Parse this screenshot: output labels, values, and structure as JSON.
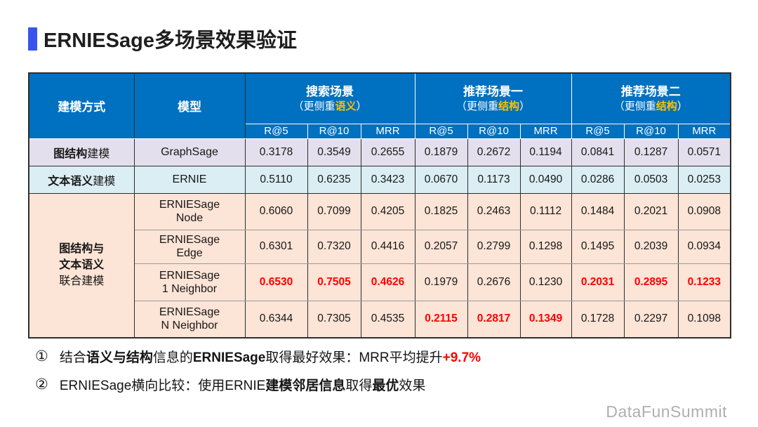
{
  "title": "ERNIESage多场景效果验证",
  "colors": {
    "accent-bar": "#3A53EC",
    "header-bg": "#0070C0",
    "header-text": "#FFFFFF",
    "highlight-yellow": "#FFC000",
    "highlight-red": "#FF0000",
    "row-graph-bg": "#E4DFEC",
    "row-text-bg": "#DAEEF3",
    "row-joint-bg": "#FCE4D6",
    "border-dark": "#2E2E2E",
    "border-light": "#9A9A9A",
    "footer-text": "#AFAFAF",
    "title-text": "#1E1E1E"
  },
  "table": {
    "headers": {
      "method": "建模方式",
      "model": "模型"
    },
    "scenarios": [
      {
        "name": "搜索场景",
        "subtitle": [
          {
            "t": "（更侧重"
          },
          {
            "t": "语义",
            "c": "b yellow"
          },
          {
            "t": "）"
          }
        ],
        "metrics": [
          "R@5",
          "R@10",
          "MRR"
        ]
      },
      {
        "name": "推荐场景一",
        "subtitle": [
          {
            "t": "（更侧重"
          },
          {
            "t": "结构",
            "c": "b yellow"
          },
          {
            "t": "）"
          }
        ],
        "metrics": [
          "R@5",
          "R@10",
          "MRR"
        ]
      },
      {
        "name": "推荐场景二",
        "subtitle": [
          {
            "t": "（更侧重"
          },
          {
            "t": "结构",
            "c": "b yellow"
          },
          {
            "t": "）"
          }
        ],
        "metrics": [
          "R@5",
          "R@10",
          "MRR"
        ]
      }
    ],
    "rows": [
      {
        "method": [
          {
            "t": "图结构",
            "c": "b"
          },
          {
            "t": "建模"
          }
        ],
        "model_lines": [
          "GraphSage"
        ],
        "values": [
          "0.3178",
          "0.3549",
          "0.2655",
          "0.1879",
          "0.2672",
          "0.1194",
          "0.0841",
          "0.1287",
          "0.0571"
        ],
        "red_value_indices": []
      },
      {
        "method": [
          {
            "t": "文本语义",
            "c": "b"
          },
          {
            "t": "建模"
          }
        ],
        "model_lines": [
          "ERNIE"
        ],
        "values": [
          "0.5110",
          "0.6235",
          "0.3423",
          "0.0670",
          "0.1173",
          "0.0490",
          "0.0286",
          "0.0503",
          "0.0253"
        ],
        "red_value_indices": []
      },
      {
        "group_lines": [
          {
            "t": "图结构与",
            "c": "b"
          },
          {
            "t": "文本语义",
            "c": "b"
          },
          {
            "t": "联合建模"
          }
        ],
        "model_lines": [
          "ERNIESage",
          "Node"
        ],
        "values": [
          "0.6060",
          "0.7099",
          "0.4205",
          "0.1825",
          "0.2463",
          "0.1112",
          "0.1484",
          "0.2021",
          "0.0908"
        ],
        "red_value_indices": []
      },
      {
        "model_lines": [
          "ERNIESage",
          "Edge"
        ],
        "values": [
          "0.6301",
          "0.7320",
          "0.4416",
          "0.2057",
          "0.2799",
          "0.1298",
          "0.1495",
          "0.2039",
          "0.0934"
        ],
        "red_value_indices": []
      },
      {
        "model_lines": [
          "ERNIESage",
          "1 Neighbor"
        ],
        "values": [
          "0.6530",
          "0.7505",
          "0.4626",
          "0.1979",
          "0.2676",
          "0.1230",
          "0.2031",
          "0.2895",
          "0.1233"
        ],
        "red_value_indices": [
          0,
          1,
          2,
          6,
          7,
          8
        ]
      },
      {
        "model_lines": [
          "ERNIESage",
          "N Neighbor"
        ],
        "values": [
          "0.6344",
          "0.7305",
          "0.4535",
          "0.2115",
          "0.2817",
          "0.1349",
          "0.1728",
          "0.2297",
          "0.1098"
        ],
        "red_value_indices": [
          3,
          4,
          5
        ]
      }
    ]
  },
  "notes": [
    {
      "num": "①",
      "segments": [
        {
          "t": "结合"
        },
        {
          "t": "语义与结构",
          "c": "b"
        },
        {
          "t": "信息的"
        },
        {
          "t": "ERNIESage",
          "c": "b"
        },
        {
          "t": "取得最好效果：MRR平均提升"
        },
        {
          "t": "+9.7%",
          "c": "b red"
        }
      ]
    },
    {
      "num": "②",
      "segments": [
        {
          "t": "ERNIESage横向比较：使用ERNIE"
        },
        {
          "t": "建模邻居信息",
          "c": "b"
        },
        {
          "t": "取得"
        },
        {
          "t": "最优",
          "c": "b"
        },
        {
          "t": "效果"
        }
      ]
    }
  ],
  "footer": "DataFunSummit"
}
